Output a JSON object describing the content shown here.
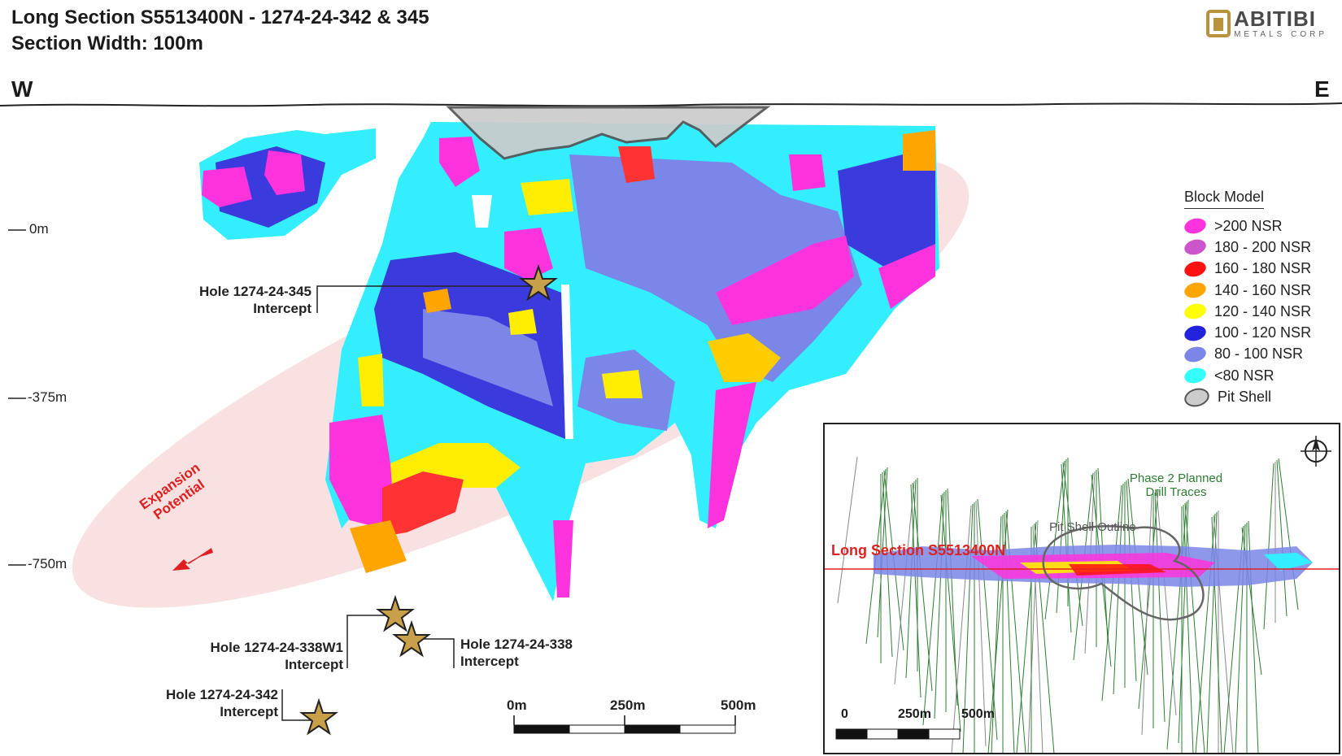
{
  "title": {
    "line1": "Long Section S5513400N - 1274-24-342 & 345",
    "line2": "Section Width: 100m"
  },
  "orientation": {
    "west": "W",
    "east": "E"
  },
  "logo": {
    "name": "ABITIBI",
    "subtitle": "METALS CORP",
    "icon": "abitibi-logo-icon"
  },
  "depth_labels": [
    "0m",
    "-375m",
    "-750m"
  ],
  "callouts": {
    "hole_345": {
      "name": "Hole 1274-24-345",
      "sub": "Intercept"
    },
    "hole_338w1": {
      "name": "Hole 1274-24-338W1",
      "sub": "Intercept"
    },
    "hole_338": {
      "name": "Hole 1274-24-338",
      "sub": "Intercept"
    },
    "hole_342": {
      "name": "Hole 1274-24-342",
      "sub": "Intercept"
    }
  },
  "expansion": {
    "line1": "Expansion",
    "line2": "Potential"
  },
  "legend": {
    "title": "Block Model",
    "items": [
      {
        "label": ">200 NSR",
        "color": "#ff33dd"
      },
      {
        "label": "180 - 200 NSR",
        "color": "#cc55cc"
      },
      {
        "label": "160 - 180 NSR",
        "color": "#ff1111"
      },
      {
        "label": "140 - 160 NSR",
        "color": "#ffa500"
      },
      {
        "label": "120 - 140 NSR",
        "color": "#ffff00"
      },
      {
        "label": "100 - 120 NSR",
        "color": "#2222dd"
      },
      {
        "label": "80 - 100 NSR",
        "color": "#7a86e8"
      },
      {
        "label": "<80 NSR",
        "color": "#33ffff"
      },
      {
        "label": "Pit Shell",
        "color": "#cccccc"
      }
    ]
  },
  "scale_bar": {
    "labels": [
      "0m",
      "250m",
      "500m"
    ]
  },
  "inset": {
    "section_label": "Long Section S5513400N",
    "pit_label": "Pit Shell Outline",
    "phase_label_1": "Phase 2 Planned",
    "phase_label_2": "Drill Traces",
    "scale_labels": [
      "0",
      "250m",
      "500m"
    ],
    "north_icon": "north-arrow-icon"
  },
  "colors": {
    "section_line": "#e02020",
    "drill_traces": "#2e7d32",
    "expansion_zone": "#f6c8c8",
    "star": "#c9a04a"
  }
}
